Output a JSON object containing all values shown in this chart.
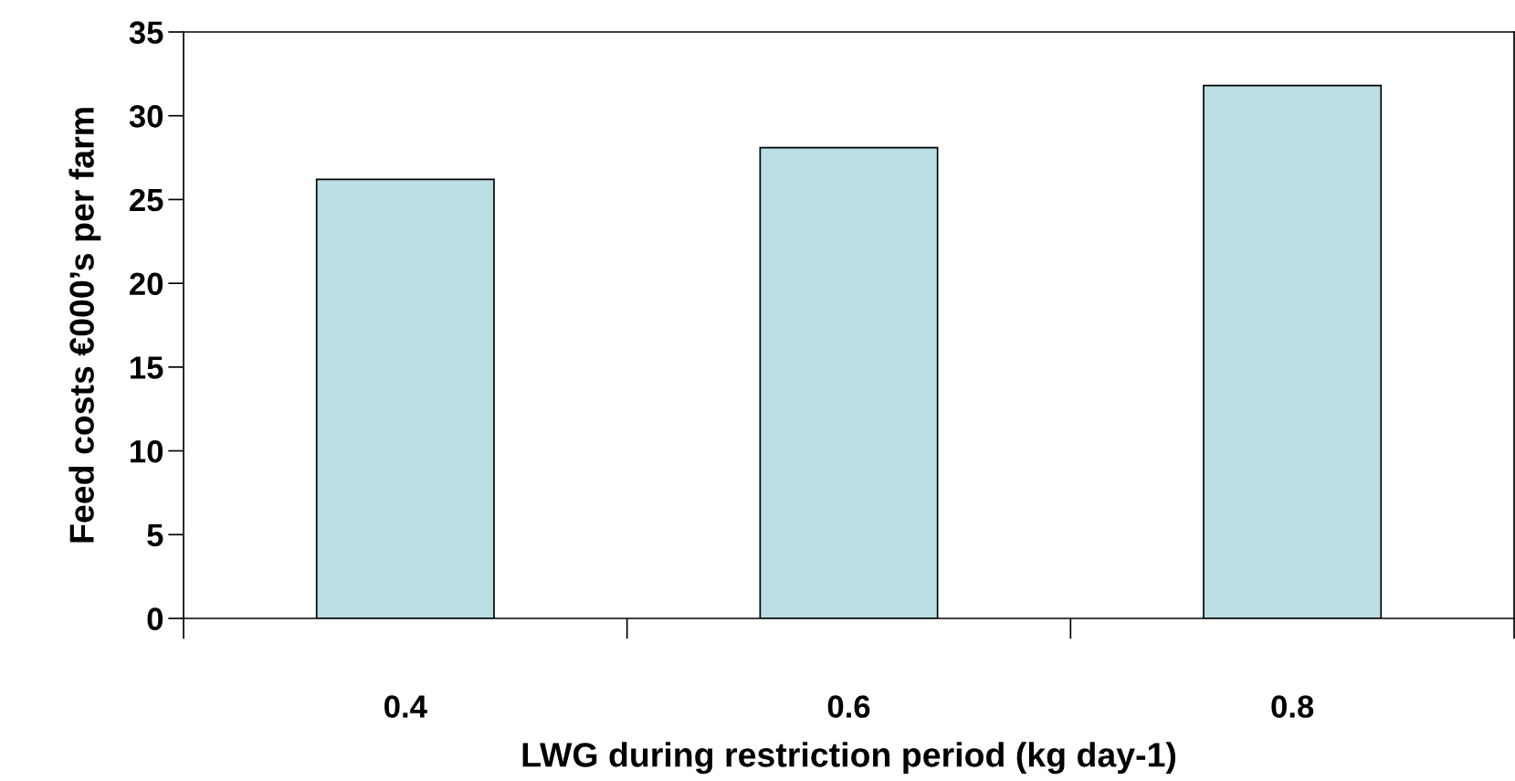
{
  "chart_data": {
    "type": "bar",
    "xlabel": "LWG during restriction period (kg day-1)",
    "ylabel": "Feed costs €000’s per farm",
    "categories": [
      "0.4",
      "0.6",
      "0.8"
    ],
    "values": [
      26.2,
      28.1,
      31.8
    ],
    "color": "#b9dfe3",
    "ylim": [
      0,
      35
    ],
    "yticks": [
      0,
      5,
      10,
      15,
      20,
      25,
      30,
      35
    ],
    "grid": false
  }
}
